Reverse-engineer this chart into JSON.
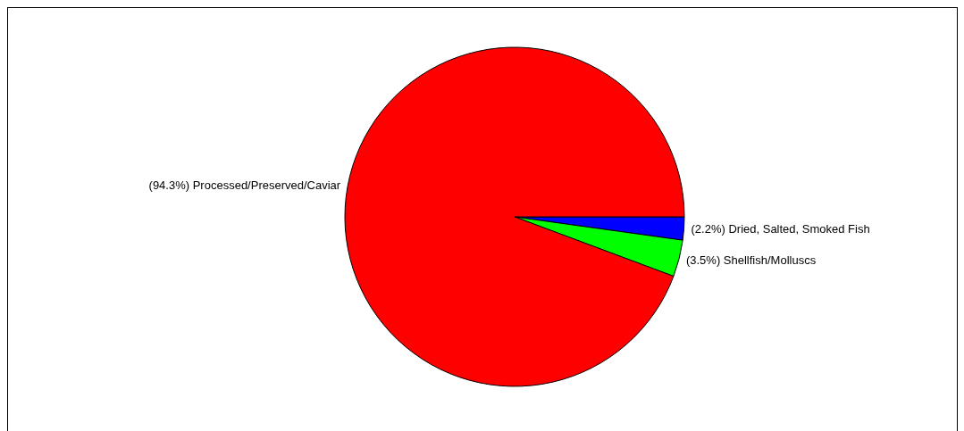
{
  "chart_data": {
    "type": "pie",
    "categories": [
      "Dried, Salted, Smoked Fish",
      "Shellfish/Molluscs",
      "Processed/Preserved/Caviar"
    ],
    "values": [
      2.2,
      3.5,
      94.3
    ],
    "colors": [
      "#0000ff",
      "#00ff00",
      "#ff0000"
    ],
    "value_labels": [
      "(2.2%)",
      "(3.5%)",
      "(94.3%)"
    ],
    "legend": false
  }
}
